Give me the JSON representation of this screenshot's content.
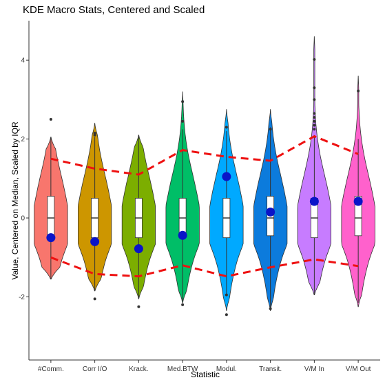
{
  "chart_data": {
    "type": "violin",
    "title": "KDE Macro Stats, Centered and Scaled",
    "xlabel": "Statistic",
    "ylabel": "Value, Centered on Median, Scaled by IQR",
    "ylim": [
      -3.6,
      5.0
    ],
    "yticks": [
      -2,
      0,
      2,
      4
    ],
    "grid": false,
    "legend": "none",
    "categories": [
      "#Comm.",
      "Corr I/O",
      "Krack.",
      "Med.BTW",
      "Modul.",
      "Transit.",
      "V/M In",
      "V/M Out"
    ],
    "colors": [
      "#F8766D",
      "#CD9600",
      "#7CAE00",
      "#00BE67",
      "#00A9FF",
      "#0C7BDC",
      "#C77CFF",
      "#FF61CC"
    ],
    "violin_range": [
      [
        -1.55,
        2.05
      ],
      [
        -1.85,
        2.4
      ],
      [
        -2.05,
        2.1
      ],
      [
        -2.15,
        3.2
      ],
      [
        -2.35,
        2.75
      ],
      [
        -2.35,
        2.75
      ],
      [
        -1.95,
        4.6
      ],
      [
        -2.25,
        3.6
      ]
    ],
    "boxes": [
      {
        "q1": -0.45,
        "median": 0.0,
        "q3": 0.55,
        "whisker_low": -1.55,
        "whisker_high": 2.05
      },
      {
        "q1": -0.5,
        "median": 0.0,
        "q3": 0.5,
        "whisker_low": -1.85,
        "whisker_high": 2.05
      },
      {
        "q1": -0.5,
        "median": 0.0,
        "q3": 0.5,
        "whisker_low": -2.05,
        "whisker_high": 2.1
      },
      {
        "q1": -0.5,
        "median": 0.0,
        "q3": 0.5,
        "whisker_low": -2.1,
        "whisker_high": 2.25
      },
      {
        "q1": -0.5,
        "median": 0.0,
        "q3": 0.5,
        "whisker_low": -1.95,
        "whisker_high": 2.2
      },
      {
        "q1": -0.45,
        "median": 0.0,
        "q3": 0.55,
        "whisker_low": -2.3,
        "whisker_high": 2.3
      },
      {
        "q1": -0.5,
        "median": 0.0,
        "q3": 0.5,
        "whisker_low": -1.95,
        "whisker_high": 2.1
      },
      {
        "q1": -0.45,
        "median": 0.0,
        "q3": 0.55,
        "whisker_low": -2.15,
        "whisker_high": 2.0
      }
    ],
    "outliers": [
      [
        2.5
      ],
      [
        2.15,
        2.1,
        -2.05
      ],
      [
        -2.25
      ],
      [
        2.95,
        2.45,
        -2.2
      ],
      [
        2.3,
        -1.95,
        -2.45
      ],
      [
        2.25,
        -2.3
      ],
      [
        4.02,
        3.3,
        3.0,
        2.65,
        2.55,
        2.45,
        2.35,
        2.25
      ],
      [
        3.22
      ]
    ],
    "observed_points": [
      -0.5,
      -0.6,
      -0.78,
      -0.44,
      1.05,
      0.15,
      0.42,
      0.42
    ],
    "upper_band": [
      1.5,
      1.25,
      1.1,
      1.72,
      1.55,
      1.45,
      2.07,
      1.62
    ],
    "lower_band": [
      -1.0,
      -1.42,
      -1.48,
      -1.2,
      -1.48,
      -1.25,
      -1.05,
      -1.22
    ]
  }
}
